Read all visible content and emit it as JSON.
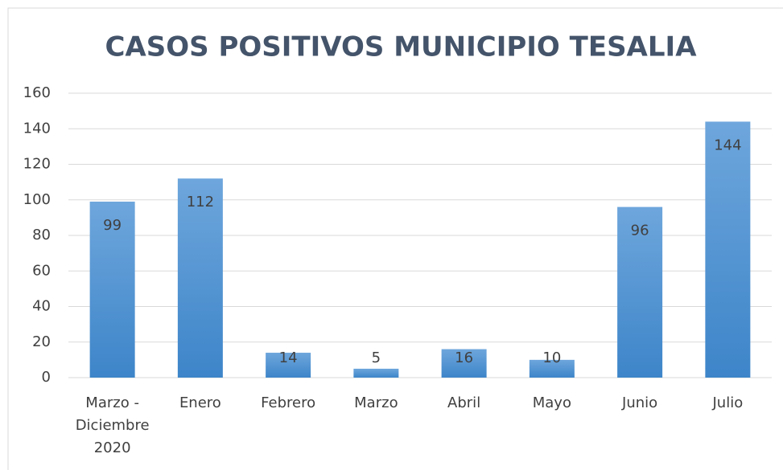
{
  "chart_data": {
    "type": "bar",
    "title": "CASOS POSITIVOS MUNICIPIO TESALIA",
    "categories": [
      "Marzo - Diciembre 2020",
      "Enero",
      "Febrero",
      "Marzo",
      "Abril",
      "Mayo",
      "Junio",
      "Julio"
    ],
    "values": [
      99,
      112,
      14,
      5,
      16,
      10,
      96,
      144
    ],
    "color": "#5b9bd5",
    "ylim": [
      0,
      160
    ],
    "yticks": [
      0,
      20,
      40,
      60,
      80,
      100,
      120,
      140,
      160
    ],
    "grid": true
  }
}
